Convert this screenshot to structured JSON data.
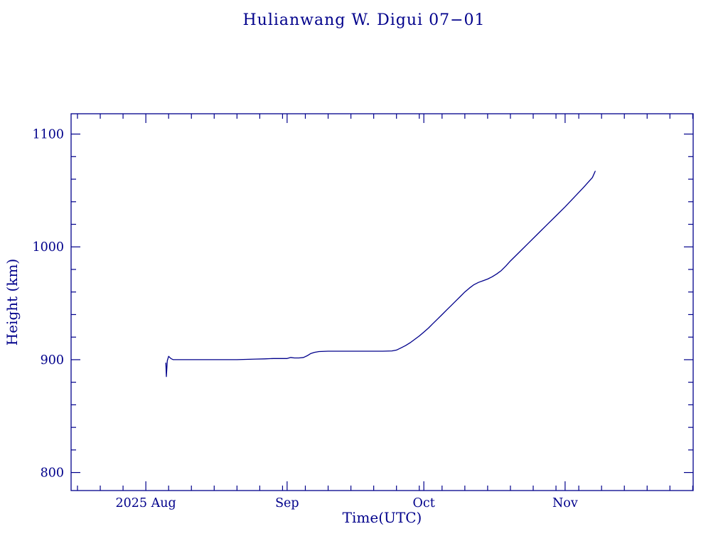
{
  "title": "Hulianwang W. Digui 07−01",
  "colors": {
    "line": "#00008B",
    "frame": "#00008B",
    "text": "#00008B",
    "background": "#FFFFFF"
  },
  "chart_data": {
    "type": "line",
    "title": "Hulianwang W. Digui 07−01",
    "xlabel": "Time(UTC)",
    "ylabel": "Height (km)",
    "x_unit": "days since 2025-08-01",
    "x_range": [
      -16.4,
      120.1
    ],
    "y_range": [
      784,
      1118
    ],
    "x_ticks": [
      {
        "day": 0,
        "label": "2025 Aug"
      },
      {
        "day": 31,
        "label": "Sep"
      },
      {
        "day": 61,
        "label": "Oct"
      },
      {
        "day": 92,
        "label": "Nov"
      }
    ],
    "x_minor_interval_days": 5,
    "y_ticks": [
      800,
      900,
      1000,
      1100
    ],
    "y_minor_interval": 20,
    "grid": false,
    "legend": "none",
    "series": [
      {
        "name": "height",
        "points": [
          [
            4.4,
            897
          ],
          [
            4.5,
            885
          ],
          [
            4.7,
            899
          ],
          [
            5.0,
            903
          ],
          [
            5.5,
            901
          ],
          [
            6,
            900
          ],
          [
            8,
            900
          ],
          [
            10,
            900
          ],
          [
            12,
            900
          ],
          [
            14,
            900
          ],
          [
            16,
            900
          ],
          [
            18,
            900
          ],
          [
            20,
            900
          ],
          [
            22,
            900.3
          ],
          [
            24,
            900.5
          ],
          [
            26,
            900.7
          ],
          [
            28,
            901
          ],
          [
            30,
            901
          ],
          [
            31,
            901
          ],
          [
            31.8,
            902
          ],
          [
            32.6,
            901.5
          ],
          [
            33.6,
            901.5
          ],
          [
            34.6,
            902
          ],
          [
            35.4,
            903.5
          ],
          [
            36.2,
            905.5
          ],
          [
            37,
            906.5
          ],
          [
            38,
            907.2
          ],
          [
            40,
            907.5
          ],
          [
            43,
            907.5
          ],
          [
            46,
            907.5
          ],
          [
            49,
            907.5
          ],
          [
            52,
            907.5
          ],
          [
            54,
            907.8
          ],
          [
            55,
            908.5
          ],
          [
            56,
            910.5
          ],
          [
            57,
            912.5
          ],
          [
            58,
            915
          ],
          [
            59,
            918
          ],
          [
            60,
            921
          ],
          [
            61,
            924.5
          ],
          [
            62,
            928
          ],
          [
            63,
            932
          ],
          [
            64,
            936
          ],
          [
            65,
            940
          ],
          [
            66,
            944
          ],
          [
            67,
            948
          ],
          [
            68,
            952
          ],
          [
            69,
            956
          ],
          [
            70,
            960
          ],
          [
            71,
            963.5
          ],
          [
            72,
            966.5
          ],
          [
            73,
            968.5
          ],
          [
            74,
            970
          ],
          [
            75,
            971.5
          ],
          [
            76,
            973.5
          ],
          [
            77,
            976
          ],
          [
            78,
            979
          ],
          [
            79,
            983
          ],
          [
            80,
            987.5
          ],
          [
            82,
            995.5
          ],
          [
            84,
            1003.5
          ],
          [
            86,
            1011.5
          ],
          [
            88,
            1019.5
          ],
          [
            90,
            1027.5
          ],
          [
            92,
            1035.5
          ],
          [
            94,
            1044
          ],
          [
            96,
            1052.5
          ],
          [
            98,
            1061.5
          ],
          [
            98.6,
            1067
          ]
        ]
      }
    ]
  }
}
